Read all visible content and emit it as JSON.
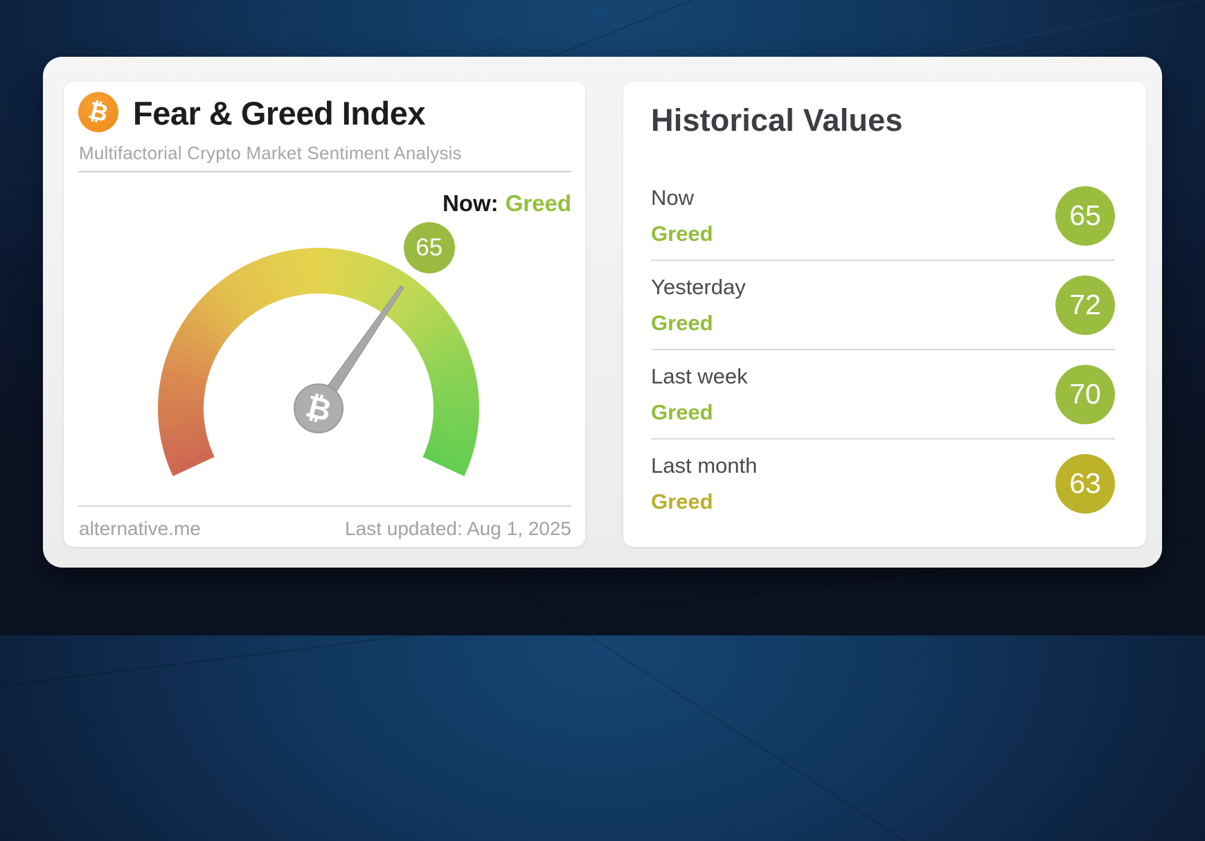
{
  "left_card": {
    "title": "Fear & Greed Index",
    "subtitle": "Multifactorial Crypto Market Sentiment Analysis",
    "bitcoin_symbol": "₿",
    "now_label": "Now:",
    "now_value": "Greed",
    "gauge_value": "65",
    "source": "alternative.me",
    "last_updated": "Last updated: Aug 1, 2025"
  },
  "right_card": {
    "title": "Historical Values",
    "rows": [
      {
        "label": "Now",
        "sentiment": "Greed",
        "value": "65",
        "color": "#94bd3b",
        "circle_color": "#9abd3f"
      },
      {
        "label": "Yesterday",
        "sentiment": "Greed",
        "value": "72",
        "color": "#94bd3b",
        "circle_color": "#9abd3f"
      },
      {
        "label": "Last week",
        "sentiment": "Greed",
        "value": "70",
        "color": "#94bd3b",
        "circle_color": "#9abd3f"
      },
      {
        "label": "Last month",
        "sentiment": "Greed",
        "value": "63",
        "color": "#b9b02c",
        "circle_color": "#bcb32a"
      }
    ]
  },
  "colors": {
    "badge_green": "#9aba41",
    "needle_gray": "#a8a8a8",
    "accent_green": "#94c13d"
  },
  "chart_data": {
    "type": "gauge",
    "title": "Fear & Greed Index",
    "value": 65,
    "min": 0,
    "max": 100,
    "sentiment": "Greed",
    "arc_colors": [
      "#cd6751",
      "#da8b50",
      "#e3c04e",
      "#e5d44e",
      "#c0d854",
      "#8ad254",
      "#62ce52"
    ],
    "historical": [
      {
        "label": "Now",
        "value": 65,
        "sentiment": "Greed"
      },
      {
        "label": "Yesterday",
        "value": 72,
        "sentiment": "Greed"
      },
      {
        "label": "Last week",
        "value": 70,
        "sentiment": "Greed"
      },
      {
        "label": "Last month",
        "value": 63,
        "sentiment": "Greed"
      }
    ]
  }
}
